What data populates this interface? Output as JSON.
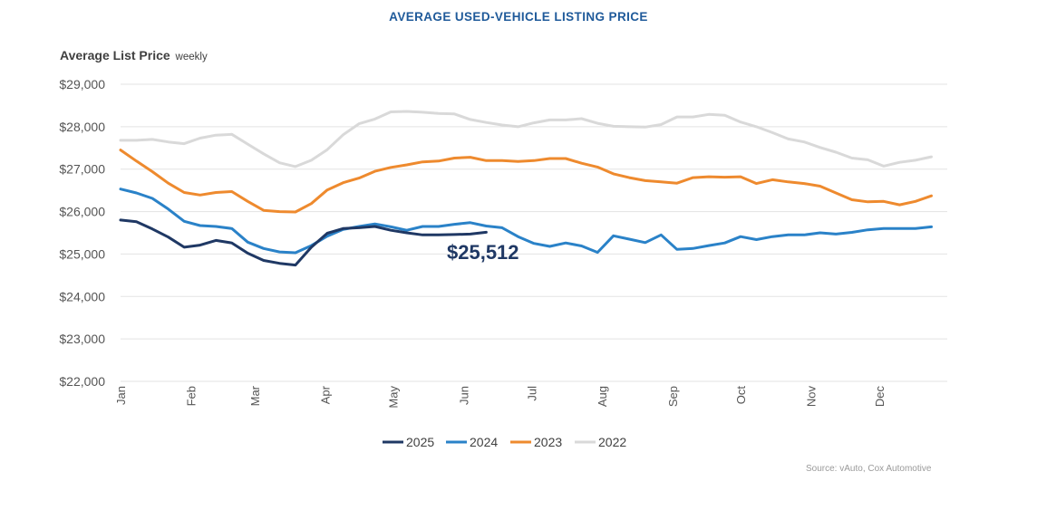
{
  "chart_data": {
    "type": "line",
    "title": "AVERAGE USED-VEHICLE LISTING PRICE",
    "ylabel": "Average List Price",
    "ylabel_note": "weekly",
    "ylim": [
      22000,
      29000
    ],
    "yticks": [
      22000,
      23000,
      24000,
      25000,
      26000,
      27000,
      28000,
      29000
    ],
    "ytick_labels": [
      "$22,000",
      "$23,000",
      "$24,000",
      "$25,000",
      "$26,000",
      "$27,000",
      "$28,000",
      "$29,000"
    ],
    "xlim": [
      0,
      52
    ],
    "xticks": [
      0,
      4.43,
      8.43,
      12.86,
      17.14,
      21.57,
      25.86,
      30.29,
      34.71,
      39,
      43.43,
      47.71
    ],
    "xtick_labels": [
      "Jan",
      "Feb",
      "Mar",
      "Apr",
      "May",
      "Jun",
      "Jul",
      "Aug",
      "Sep",
      "Oct",
      "Nov",
      "Dec"
    ],
    "annotation": {
      "text": "$25,512",
      "x": 20.5,
      "y": 25150
    },
    "legend_position": "bottom",
    "series": [
      {
        "name": "2025",
        "color": "#1f3864",
        "values": [
          25800,
          25760,
          25590,
          25400,
          25160,
          25210,
          25320,
          25260,
          25020,
          24850,
          24780,
          24740,
          25160,
          25490,
          25600,
          25620,
          25650,
          25560,
          25500,
          25450,
          25450,
          25460,
          25470,
          25512
        ]
      },
      {
        "name": "2024",
        "color": "#2a82c8",
        "values": [
          26530,
          26440,
          26310,
          26060,
          25770,
          25670,
          25650,
          25600,
          25280,
          25130,
          25050,
          25030,
          25200,
          25420,
          25580,
          25650,
          25710,
          25640,
          25560,
          25650,
          25650,
          25700,
          25740,
          25660,
          25620,
          25410,
          25250,
          25180,
          25260,
          25190,
          25040,
          25430,
          25350,
          25270,
          25450,
          25110,
          25130,
          25200,
          25260,
          25410,
          25340,
          25410,
          25450,
          25450,
          25500,
          25470,
          25510,
          25570,
          25600,
          25600,
          25600,
          25640
        ]
      },
      {
        "name": "2023",
        "color": "#ee8a2e",
        "values": [
          27450,
          27190,
          26940,
          26670,
          26450,
          26390,
          26450,
          26470,
          26240,
          26030,
          26000,
          25990,
          26190,
          26510,
          26680,
          26790,
          26950,
          27040,
          27100,
          27170,
          27190,
          27260,
          27280,
          27200,
          27200,
          27180,
          27200,
          27250,
          27250,
          27140,
          27050,
          26890,
          26800,
          26730,
          26700,
          26670,
          26800,
          26820,
          26810,
          26820,
          26660,
          26750,
          26700,
          26660,
          26600,
          26440,
          26280,
          26230,
          26240,
          26160,
          26240,
          26370
        ]
      },
      {
        "name": "2022",
        "color": "#d9d9d9",
        "values": [
          27680,
          27680,
          27700,
          27640,
          27600,
          27730,
          27800,
          27820,
          27590,
          27360,
          27150,
          27060,
          27210,
          27460,
          27810,
          28070,
          28180,
          28350,
          28360,
          28340,
          28310,
          28300,
          28170,
          28100,
          28040,
          28000,
          28090,
          28160,
          28160,
          28190,
          28080,
          28010,
          28000,
          27990,
          28050,
          28230,
          28230,
          28290,
          28270,
          28110,
          28000,
          27860,
          27710,
          27640,
          27510,
          27400,
          27260,
          27220,
          27070,
          27160,
          27210,
          27290
        ]
      }
    ]
  },
  "header": {
    "title": "AVERAGE USED-VEHICLE LISTING PRICE",
    "ylabel": "Average List Price",
    "ylabel_note": "weekly"
  },
  "footer": {
    "source": "Source: vAuto, Cox Automotive"
  }
}
